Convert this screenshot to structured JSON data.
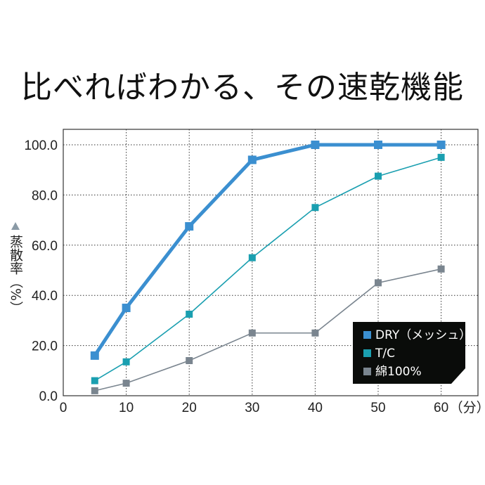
{
  "title": "比べればわかる、その速乾機能",
  "chart_data": {
    "type": "line",
    "ylabel": "蒸散率（%）",
    "ylabel_marker": "▲",
    "x_unit_label": "（分）",
    "xlim": [
      0,
      65
    ],
    "ylim": [
      0,
      100
    ],
    "x_ticks": [
      0,
      10,
      20,
      30,
      40,
      50,
      60
    ],
    "x_tick_labels": [
      "0",
      "10",
      "20",
      "30",
      "40",
      "50",
      "60"
    ],
    "y_ticks": [
      0,
      20,
      40,
      60,
      80,
      100
    ],
    "y_tick_labels": [
      "0.0",
      "20.0",
      "40.0",
      "60.0",
      "80.0",
      "100.0"
    ],
    "grid": "dotted",
    "legend_position": "bottom-right",
    "x": [
      5,
      10,
      20,
      30,
      40,
      50,
      60
    ],
    "series": [
      {
        "name": "DRY（メッシュ）",
        "color": "#3b8fd0",
        "values": [
          16,
          35,
          67.5,
          94,
          100,
          100,
          100
        ]
      },
      {
        "name": "T/C",
        "color": "#1a9fb0",
        "values": [
          6,
          13.5,
          32.5,
          55,
          75,
          87.5,
          95
        ]
      },
      {
        "name": "綿100%",
        "color": "#7a858f",
        "values": [
          2,
          5,
          14,
          25,
          25,
          45,
          50.5
        ]
      }
    ]
  }
}
